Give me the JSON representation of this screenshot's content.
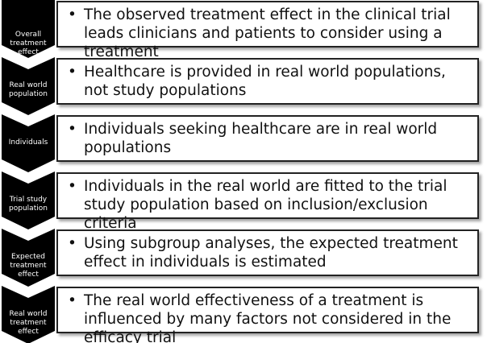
{
  "steps": [
    {
      "label": "Overall treatment effect",
      "text": "The observed treatment effect in the clinical trial leads clinicians and patients to consider using a treatment"
    },
    {
      "label": "Real world population",
      "text": "Healthcare is provided in real world populations, not study populations"
    },
    {
      "label": "Individuals",
      "text": "Individuals seeking healthcare are in real world populations"
    },
    {
      "label": "Trial study population",
      "text": "Individuals in the real world are fitted to the trial study population based on inclusion/exclusion criteria"
    },
    {
      "label": "Expected treatment effect",
      "text": "Using subgroup analyses, the expected treatment effect in individuals is estimated"
    },
    {
      "label": "Real world treatment effect",
      "text": "The real world effectiveness of a treatment is influenced by many factors not considered in the efficacy trial"
    }
  ]
}
